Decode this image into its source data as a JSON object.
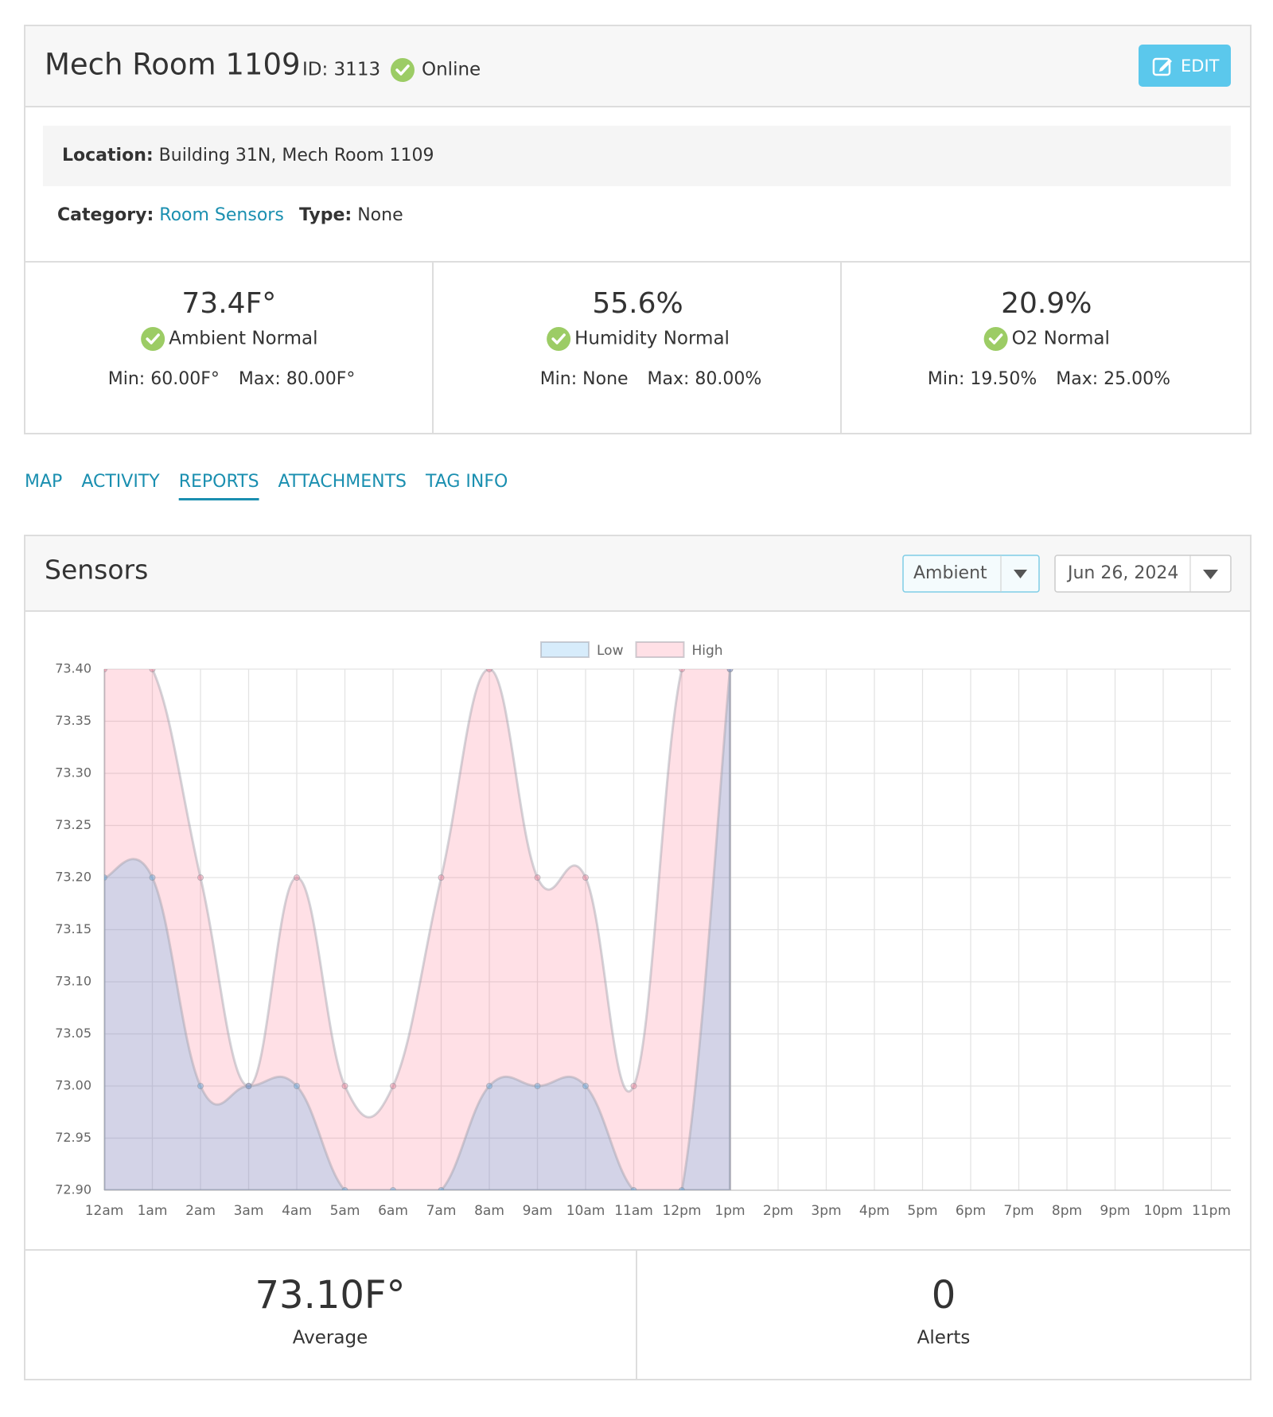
{
  "header": {
    "title": "Mech Room 1109",
    "id": "ID: 3113",
    "status": "Online",
    "edit": "EDIT"
  },
  "details": {
    "location_label": "Location:",
    "location": "Building 31N, Mech Room 1109",
    "category_label": "Category:",
    "category": "Room Sensors",
    "type_label": "Type:",
    "type": "None"
  },
  "stats": [
    {
      "value": "73.4F°",
      "status": "Ambient Normal",
      "min": "Min: 60.00F°",
      "max": "Max: 80.00F°"
    },
    {
      "value": "55.6%",
      "status": "Humidity Normal",
      "min": "Min: None",
      "max": "Max: 80.00%"
    },
    {
      "value": "20.9%",
      "status": "O2 Normal",
      "min": "Min: 19.50%",
      "max": "Max: 25.00%"
    }
  ],
  "tabs": [
    "MAP",
    "ACTIVITY",
    "REPORTS",
    "ATTACHMENTS",
    "TAG INFO"
  ],
  "sensors": {
    "title": "Sensors",
    "sensor_select": "Ambient",
    "date_select": "Jun 26, 2024"
  },
  "chart_data": {
    "type": "area",
    "categories": [
      "12am",
      "1am",
      "2am",
      "3am",
      "4am",
      "5am",
      "6am",
      "7am",
      "8am",
      "9am",
      "10am",
      "11am",
      "12pm",
      "1pm",
      "2pm",
      "3pm",
      "4pm",
      "5pm",
      "6pm",
      "7pm",
      "8pm",
      "9pm",
      "10pm",
      "11pm"
    ],
    "series": [
      {
        "name": "Low",
        "color": "#36a2eb",
        "values": [
          73.2,
          73.2,
          73.0,
          73.0,
          73.0,
          72.9,
          72.9,
          72.9,
          73.0,
          73.0,
          73.0,
          72.9,
          72.9,
          73.4,
          null,
          null,
          null,
          null,
          null,
          null,
          null,
          null,
          null,
          null
        ]
      },
      {
        "name": "High",
        "color": "#ff6384",
        "values": [
          73.4,
          73.4,
          73.2,
          73.0,
          73.2,
          73.0,
          73.0,
          73.2,
          73.4,
          73.2,
          73.2,
          73.0,
          73.4,
          73.4,
          null,
          null,
          null,
          null,
          null,
          null,
          null,
          null,
          null,
          null
        ]
      }
    ],
    "ylim": [
      72.9,
      73.4
    ],
    "yticks": [
      {
        "value": 72.9,
        "label": "72.90"
      },
      {
        "value": 72.95,
        "label": "72.95"
      },
      {
        "value": 73.0,
        "label": "73.00"
      },
      {
        "value": 73.05,
        "label": "73.05"
      },
      {
        "value": 73.1,
        "label": "73.10"
      },
      {
        "value": 73.15,
        "label": "73.15"
      },
      {
        "value": 73.2,
        "label": "73.20"
      },
      {
        "value": 73.25,
        "label": "73.25"
      },
      {
        "value": 73.3,
        "label": "73.30"
      },
      {
        "value": 73.35,
        "label": "73.35"
      },
      {
        "value": 73.4,
        "label": "73.40"
      }
    ],
    "grid": true,
    "legend": "top"
  },
  "summary": [
    {
      "value": "73.10F°",
      "label": "Average"
    },
    {
      "value": "0",
      "label": "Alerts"
    }
  ]
}
